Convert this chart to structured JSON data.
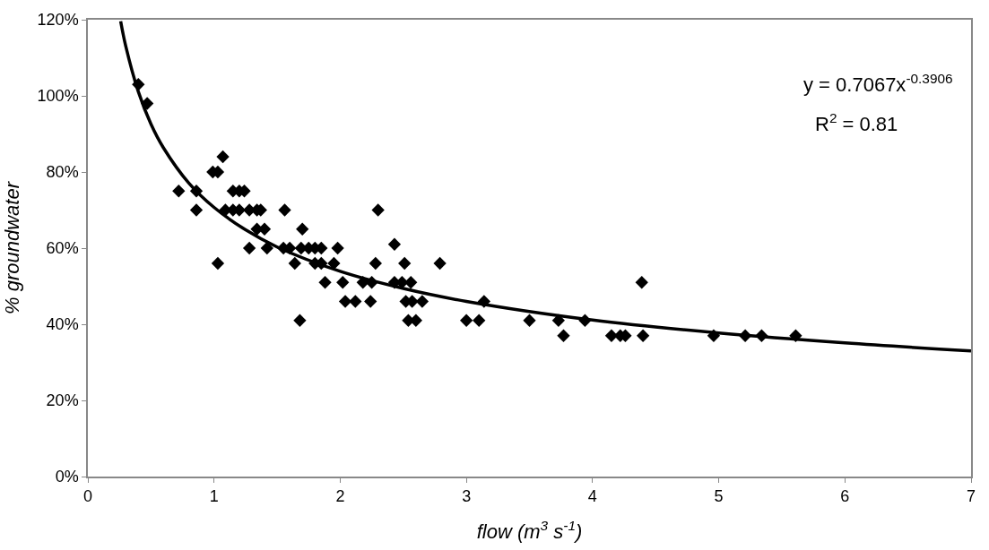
{
  "chart_data": {
    "type": "scatter",
    "xlabel": "flow (m$^{3}$ s$^{-1}$)",
    "ylabel": "% groundwater",
    "xlim": [
      0,
      7
    ],
    "xticks": [
      0,
      1,
      2,
      3,
      4,
      5,
      6,
      7
    ],
    "ylim": [
      0,
      120
    ],
    "yticks": [
      {
        "value": 0,
        "label": "0%"
      },
      {
        "value": 20,
        "label": "20%"
      },
      {
        "value": 40,
        "label": "40%"
      },
      {
        "value": 60,
        "label": "60%"
      },
      {
        "value": 80,
        "label": "80%"
      },
      {
        "value": 100,
        "label": "100%"
      },
      {
        "value": 120,
        "label": "120%"
      }
    ],
    "grid": false,
    "marker": "diamond",
    "annotations": [
      "y = 0.7067x$^{-0.3906}$",
      "R$^{2}$ = 0.81"
    ],
    "series": [
      {
        "color": "#000000",
        "x": [
          0.4,
          0.47,
          0.72,
          0.86,
          0.86,
          1.07,
          0.99,
          1.03,
          1.15,
          1.2,
          1.24,
          1.09,
          1.15,
          1.2,
          1.28,
          1.34,
          1.37,
          1.34,
          1.4,
          1.28,
          1.42,
          1.03,
          1.56,
          1.7,
          1.55,
          1.6,
          1.69,
          1.75,
          1.8,
          1.85,
          1.98,
          1.64,
          1.8,
          1.85,
          1.95,
          1.88,
          2.02,
          2.18,
          2.04,
          2.12,
          1.68,
          2.3,
          2.43,
          2.28,
          2.51,
          2.79,
          2.25,
          2.43,
          2.49,
          2.56,
          2.24,
          2.52,
          2.57,
          2.65,
          2.54,
          2.6,
          3.0,
          3.1,
          3.14,
          3.5,
          3.73,
          3.77,
          3.94,
          4.15,
          4.22,
          4.26,
          4.4,
          4.39,
          4.96,
          5.21,
          5.34,
          5.61
        ],
        "values": [
          103,
          98,
          75,
          75,
          70,
          84,
          80,
          80,
          75,
          75,
          75,
          70,
          70,
          70,
          70,
          70,
          70,
          65,
          65,
          60,
          60,
          56,
          70,
          65,
          60,
          60,
          60,
          60,
          60,
          60,
          60,
          56,
          56,
          56,
          56,
          51,
          51,
          51,
          46,
          46,
          41,
          70,
          61,
          56,
          56,
          56,
          51,
          51,
          51,
          51,
          46,
          46,
          46,
          46,
          41,
          41,
          41,
          41,
          46,
          41,
          41,
          37,
          41,
          37,
          37,
          37,
          37,
          51,
          37,
          37,
          37,
          37
        ]
      },
      {
        "type": "line",
        "color": "#000000",
        "marker": "none",
        "line_style": "solid",
        "x": [
          0.26,
          0.3,
          0.4,
          0.5,
          0.6,
          0.8,
          1,
          1.25,
          1.5,
          2,
          2.5,
          3,
          4,
          5,
          6,
          7
        ],
        "values": [
          119.6,
          113.1,
          101.1,
          92.6,
          86.3,
          77.1,
          70.7,
          64.8,
          60.3,
          53.9,
          49.4,
          46.0,
          41.1,
          37.7,
          35.1,
          33.0
        ]
      }
    ]
  }
}
